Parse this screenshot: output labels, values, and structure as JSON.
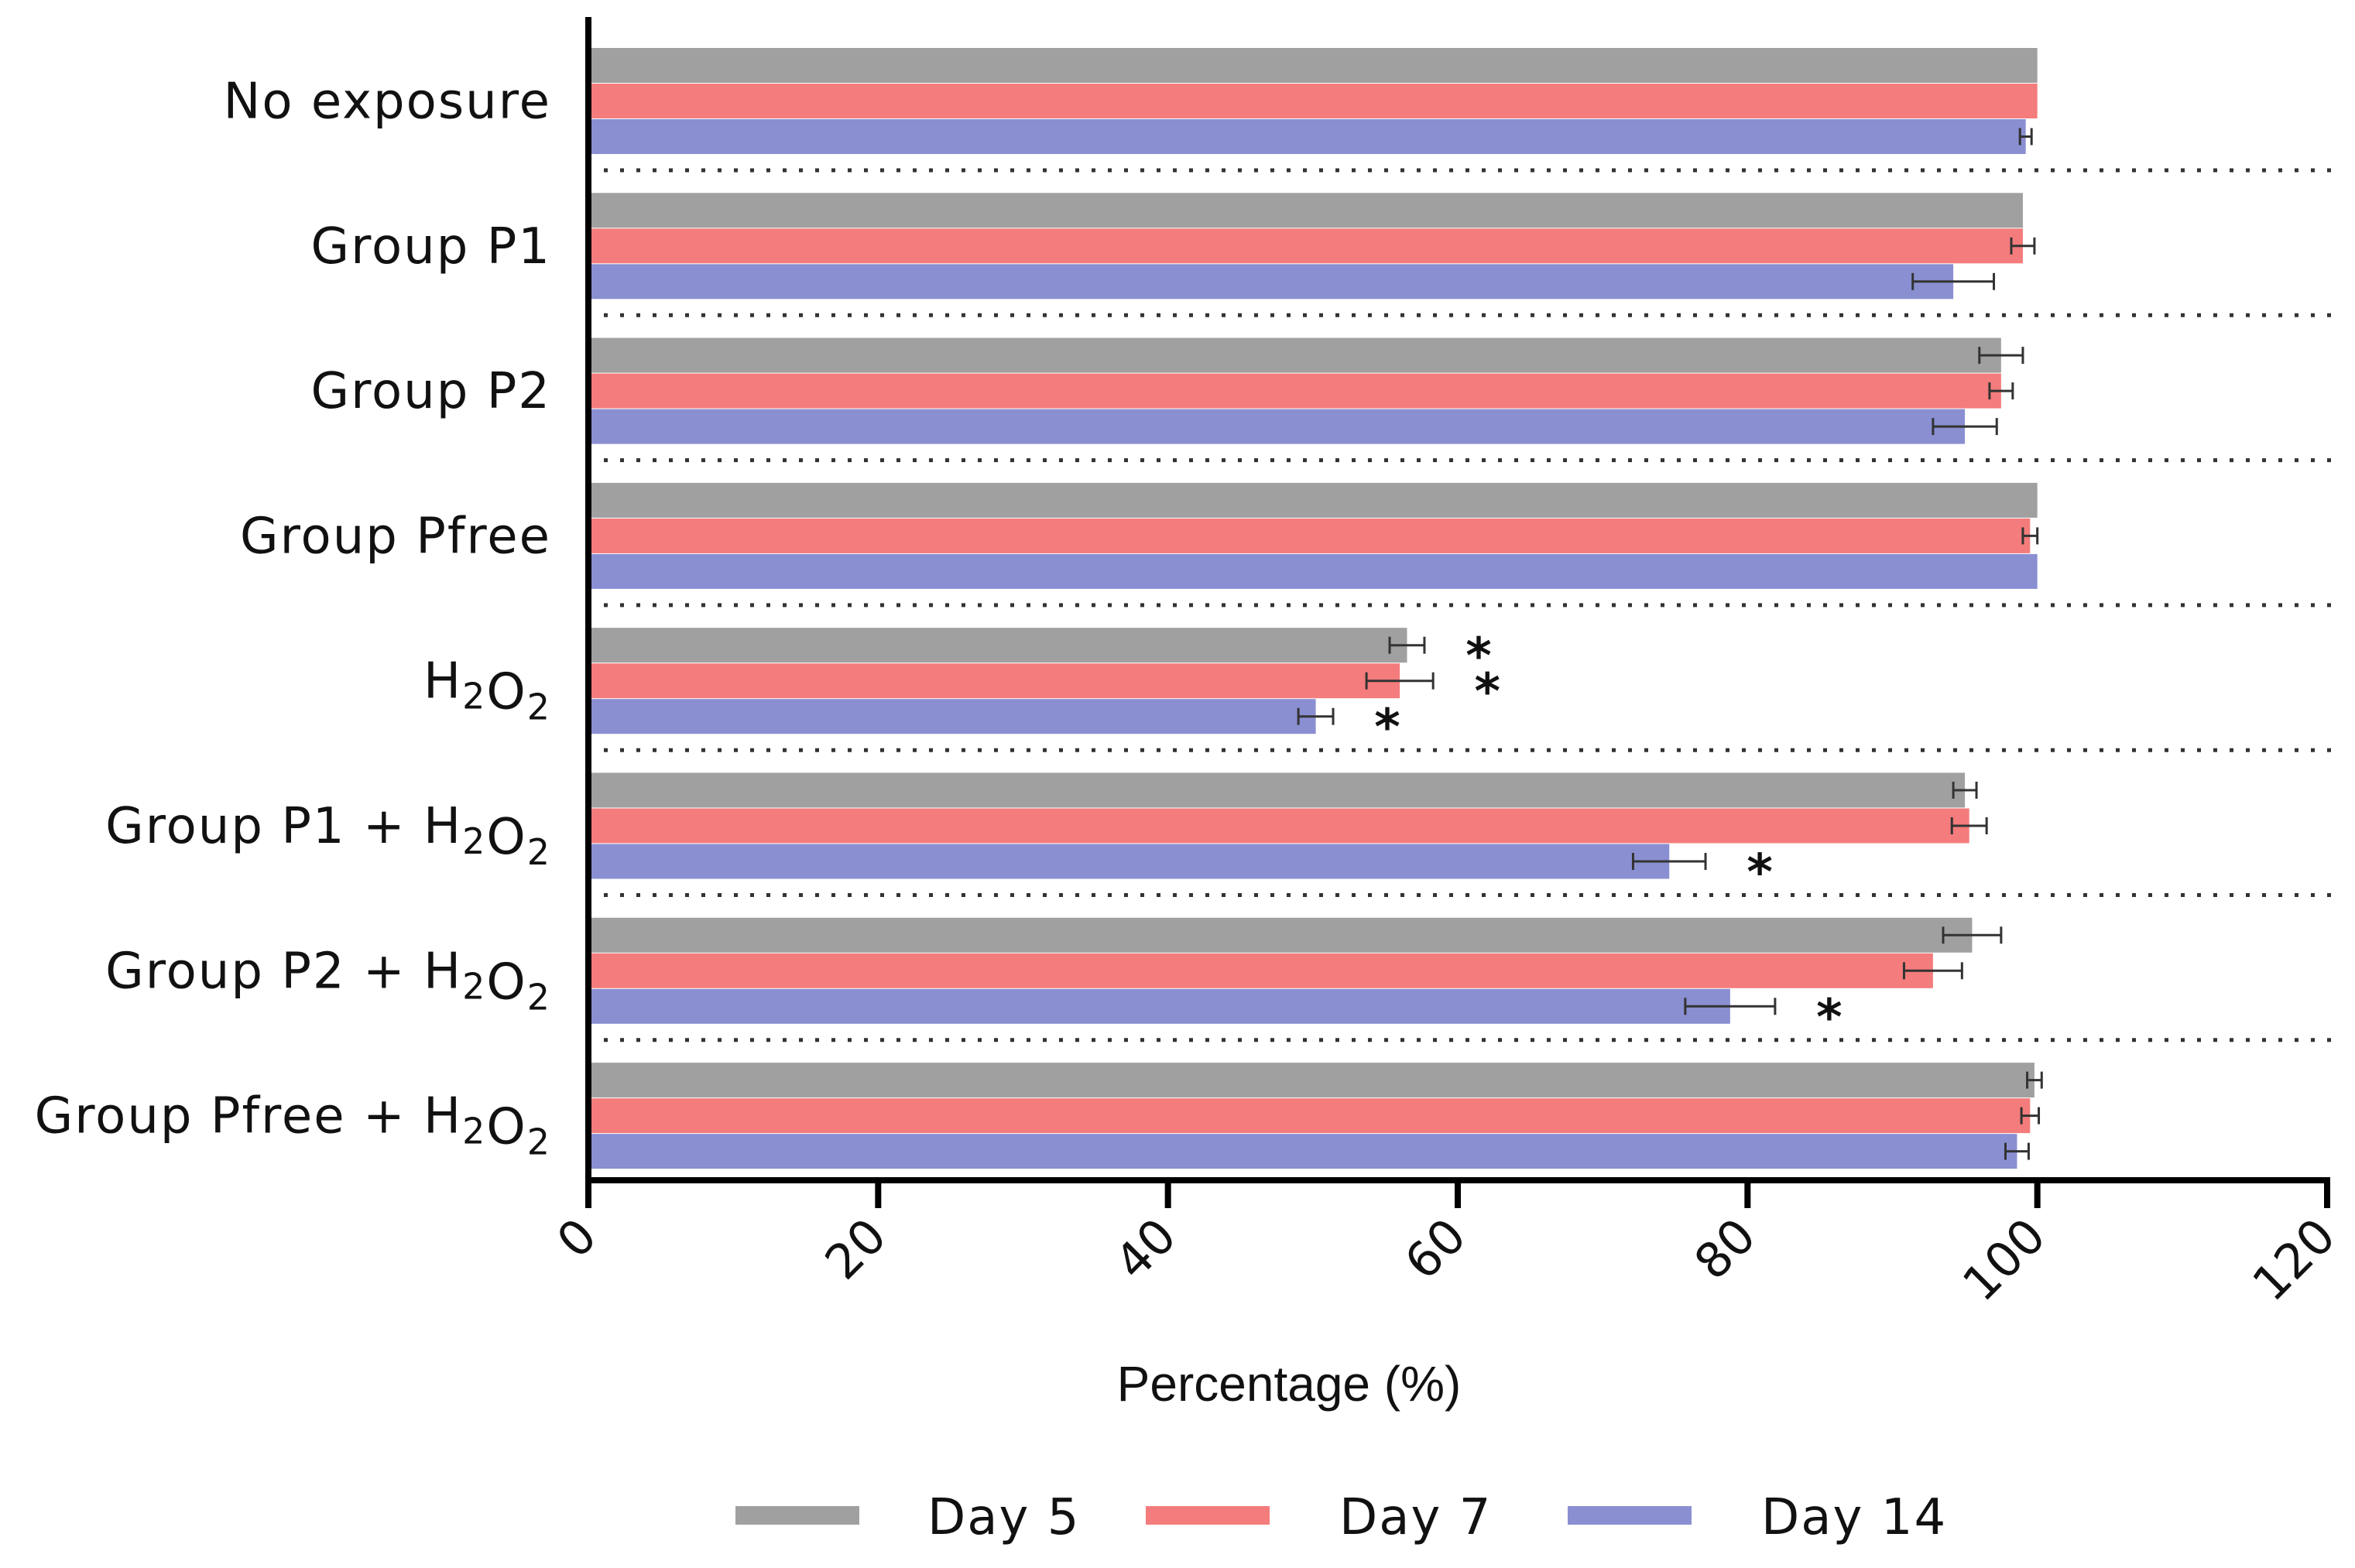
{
  "chart_data": {
    "type": "bar",
    "orientation": "horizontal",
    "title": "",
    "xlabel": "Percentage (%)",
    "ylabel": "",
    "xlim": [
      0,
      120
    ],
    "xticks": [
      0,
      20,
      40,
      60,
      80,
      100,
      120
    ],
    "xtick_labels": [
      "0",
      "20",
      "40",
      "60",
      "80",
      "100",
      "120"
    ],
    "grid": false,
    "legend_position": "bottom",
    "categories": [
      {
        "prefix": "No exposure",
        "sub": "",
        "suffix": ""
      },
      {
        "prefix": "Group P1",
        "sub": "",
        "suffix": ""
      },
      {
        "prefix": "Group P2",
        "sub": "",
        "suffix": ""
      },
      {
        "prefix": "Group Pfree",
        "sub": "",
        "suffix": ""
      },
      {
        "prefix": "H",
        "sub": "2",
        "mid": "O",
        "sub2": "2"
      },
      {
        "prefix": "Group P1 + H",
        "sub": "2",
        "mid": "O",
        "sub2": "2"
      },
      {
        "prefix": "Group P2 + H",
        "sub": "2",
        "mid": "O",
        "sub2": "2"
      },
      {
        "prefix": "Group Pfree + H",
        "sub": "2",
        "mid": "O",
        "sub2": "2"
      }
    ],
    "series": [
      {
        "name": "Day 5",
        "color": "#a0a0a0",
        "values": [
          100,
          99,
          97.5,
          100,
          56.5,
          95,
          95.5,
          99.8
        ],
        "errors": [
          0,
          0,
          1.5,
          0,
          1.2,
          0.8,
          2,
          0.5
        ],
        "significant": [
          false,
          false,
          false,
          false,
          true,
          false,
          false,
          false
        ]
      },
      {
        "name": "Day 7",
        "color": "#f47c7c",
        "values": [
          100,
          99,
          97.5,
          99.5,
          56,
          95.3,
          92.8,
          99.5
        ],
        "errors": [
          0,
          0.8,
          0.8,
          0.5,
          2.3,
          1.2,
          2,
          0.6
        ],
        "significant": [
          false,
          false,
          false,
          false,
          true,
          false,
          false,
          false
        ]
      },
      {
        "name": "Day 14",
        "color": "#8a8fd2",
        "values": [
          99.2,
          94.2,
          95,
          100,
          50.2,
          74.6,
          78.8,
          98.6
        ],
        "errors": [
          0.4,
          2.8,
          2.2,
          0,
          1.2,
          2.5,
          3.1,
          0.8
        ],
        "significant": [
          false,
          false,
          false,
          false,
          true,
          true,
          true,
          false
        ]
      }
    ],
    "significance_marker": "*"
  }
}
